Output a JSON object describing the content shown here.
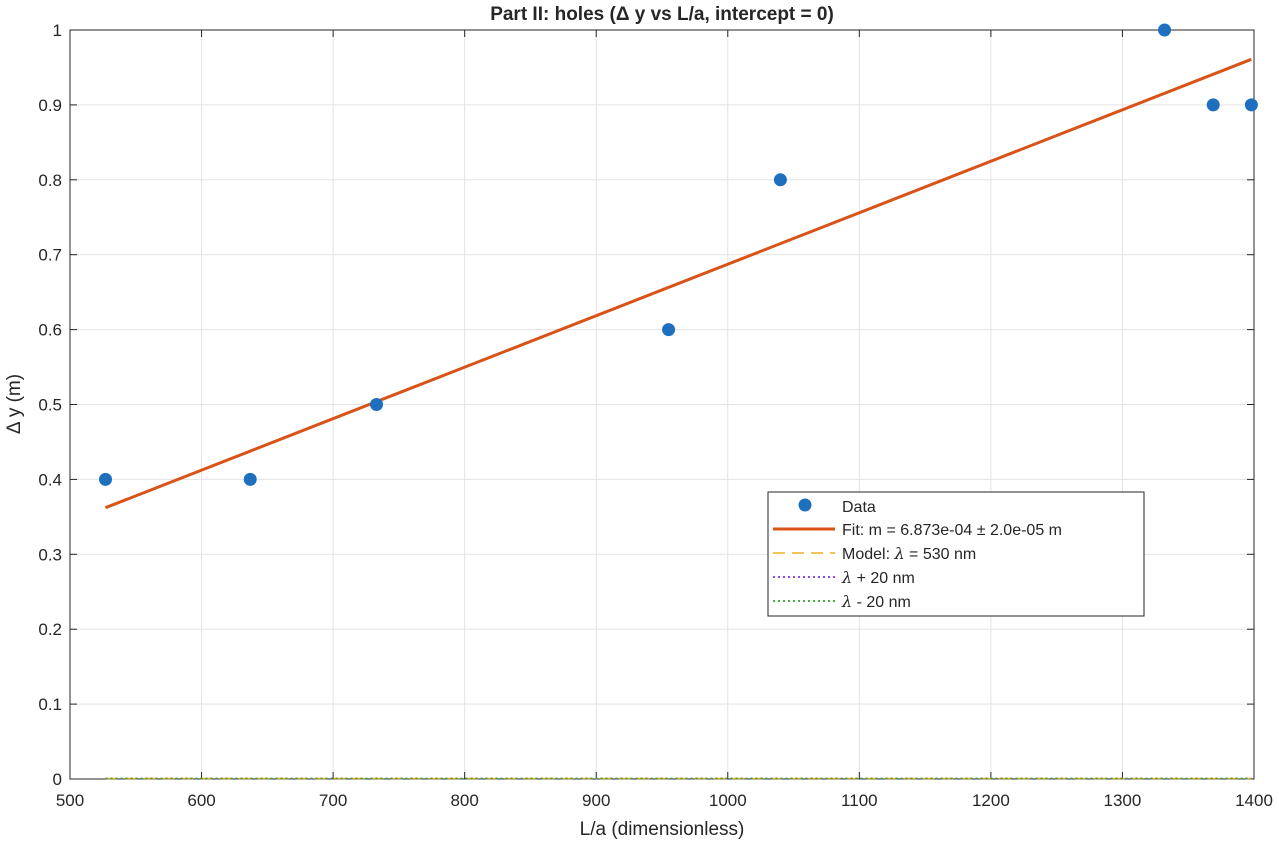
{
  "chart_data": {
    "type": "scatter",
    "title": "Part  II:  holes  (Δ  y  vs  L/a,  intercept  =  0)",
    "xlabel": "L/a (dimensionless)",
    "ylabel": "Δ  y  (m)",
    "xlim": [
      500,
      1400
    ],
    "ylim": [
      0,
      1
    ],
    "xticks": [
      500,
      600,
      700,
      800,
      900,
      1000,
      1100,
      1200,
      1300,
      1400
    ],
    "yticks": [
      0,
      0.1,
      0.2,
      0.3,
      0.4,
      0.5,
      0.6,
      0.7,
      0.8,
      0.9,
      1
    ],
    "xtick_labels": [
      "500",
      "600",
      "700",
      "800",
      "900",
      "1000",
      "1100",
      "1200",
      "1300",
      "1400"
    ],
    "ytick_labels": [
      "0",
      "0.1",
      "0.2",
      "0.3",
      "0.4",
      "0.5",
      "0.6",
      "0.7",
      "0.8",
      "0.9",
      "1"
    ],
    "grid": true,
    "legend_position": "center-right",
    "series": [
      {
        "name": "Data",
        "kind": "points",
        "color": "#1f6fbf",
        "x": [
          527,
          637,
          733,
          955,
          1040,
          1332,
          1369,
          1398
        ],
        "y": [
          0.4,
          0.4,
          0.5,
          0.6,
          0.8,
          1.0,
          0.9,
          0.9
        ]
      },
      {
        "name": "Fit",
        "kind": "line",
        "color": "#d95319",
        "slope": 0.0006873,
        "x_range": [
          527,
          1398
        ]
      },
      {
        "name": "Model",
        "kind": "dashed",
        "color": "#edb120",
        "y_const": 0.0,
        "x_range": [
          527,
          1398
        ]
      },
      {
        "name": "lambda plus",
        "kind": "dotted",
        "color": "#7e2ff0",
        "y_const": 0.0,
        "x_range": [
          527,
          1398
        ]
      },
      {
        "name": "lambda minus",
        "kind": "dotted",
        "color": "#33a02c",
        "y_const": 0.0,
        "x_range": [
          527,
          1398
        ]
      }
    ],
    "legend": {
      "data_label": "Data",
      "fit_label": "Fit:  m  =  6.873e-04   ±  2.0e-05  m",
      "model_prefix": "Model:  ",
      "model_suffix": "  =  530  nm",
      "plus_suffix": "  +  20  nm",
      "minus_suffix": "  -  20  nm",
      "lambda_symbol": "λ"
    }
  }
}
